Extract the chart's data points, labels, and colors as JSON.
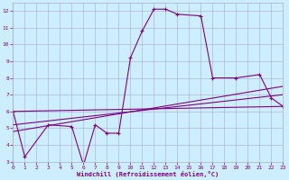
{
  "xlabel": "Windchill (Refroidissement éolien,°C)",
  "x_main": [
    0,
    1,
    3,
    5,
    6,
    7,
    8,
    9,
    10,
    11,
    12,
    13,
    14,
    16,
    17,
    19,
    21,
    22,
    23
  ],
  "y_main": [
    6.0,
    3.3,
    5.2,
    5.1,
    2.8,
    5.2,
    4.7,
    4.7,
    9.2,
    10.8,
    12.1,
    12.1,
    11.8,
    11.7,
    8.0,
    8.0,
    8.2,
    6.8,
    6.3
  ],
  "trend1_x": [
    0,
    23
  ],
  "trend1_y": [
    6.0,
    6.3
  ],
  "trend2_x": [
    0,
    23
  ],
  "trend2_y": [
    5.2,
    7.0
  ],
  "trend3_x": [
    0,
    23
  ],
  "trend3_y": [
    4.8,
    7.5
  ],
  "xlim": [
    0,
    23
  ],
  "ylim": [
    3,
    12.5
  ],
  "yticks": [
    3,
    4,
    5,
    6,
    7,
    8,
    9,
    10,
    11,
    12
  ],
  "xticks": [
    0,
    1,
    2,
    3,
    4,
    5,
    6,
    7,
    8,
    9,
    10,
    11,
    12,
    13,
    14,
    15,
    16,
    17,
    18,
    19,
    20,
    21,
    22,
    23
  ],
  "line_color": "#800080",
  "bg_color": "#cceeff",
  "grid_color": "#aaaacc"
}
